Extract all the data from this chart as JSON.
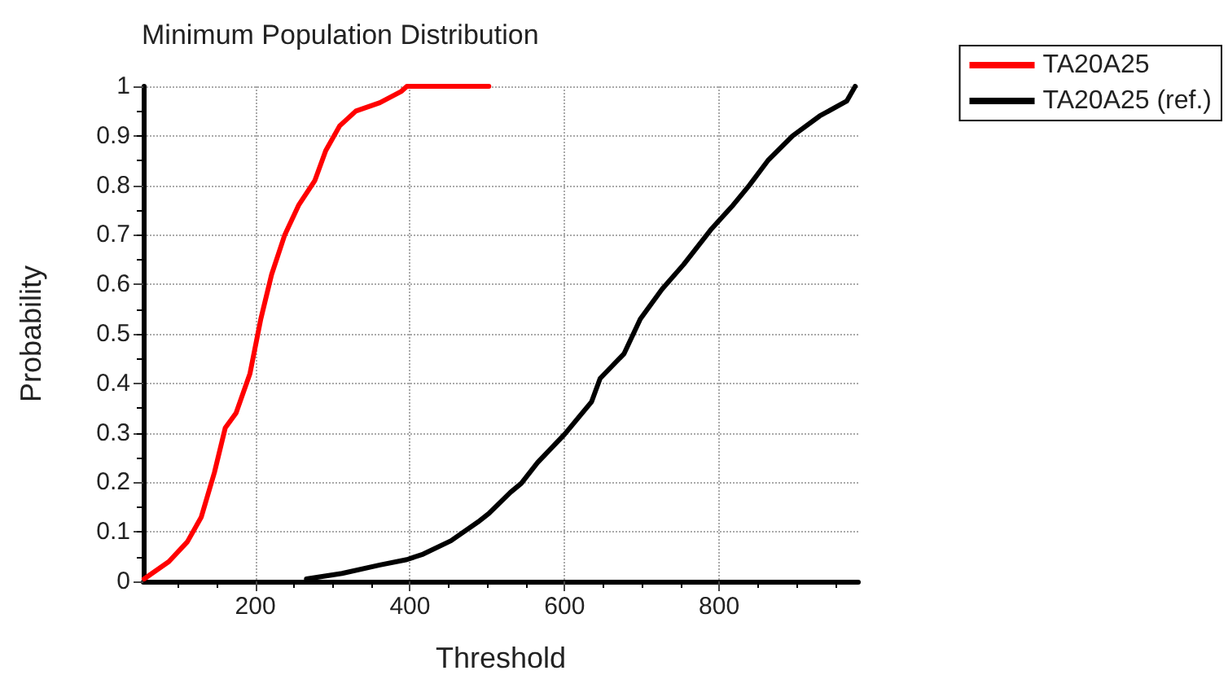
{
  "chart_data": {
    "type": "line",
    "title": "Minimum Population Distribution",
    "xlabel": "Threshold",
    "ylabel": "Probability",
    "xlim": [
      55,
      980
    ],
    "xticks": [
      200,
      400,
      600,
      800
    ],
    "ylim": [
      0,
      1
    ],
    "yticks": [
      0,
      0.1,
      0.2,
      0.3,
      0.4,
      0.5,
      0.6,
      0.7,
      0.8,
      0.9,
      1
    ],
    "grid": true,
    "legend": "top right",
    "marker": "none",
    "line_style": "solid",
    "series": [
      {
        "name": "TA20A25",
        "color": "#ff0000",
        "x": [
          56,
          88,
          112,
          130,
          147,
          161,
          175,
          193,
          207,
          221,
          238,
          256,
          277,
          291,
          309,
          330,
          361,
          389,
          396,
          502
        ],
        "values": [
          0.005,
          0.04,
          0.08,
          0.13,
          0.22,
          0.31,
          0.34,
          0.42,
          0.53,
          0.62,
          0.7,
          0.76,
          0.81,
          0.87,
          0.92,
          0.95,
          0.967,
          0.99,
          1,
          1
        ]
      },
      {
        "name": "TA20A25 (ref.)",
        "color": "#000000",
        "x": [
          266,
          312,
          361,
          396,
          417,
          453,
          488,
          502,
          530,
          544,
          565,
          600,
          635,
          646,
          677,
          698,
          726,
          754,
          789,
          818,
          839,
          863,
          895,
          930,
          965,
          976
        ],
        "values": [
          0.005,
          0.016,
          0.033,
          0.044,
          0.055,
          0.082,
          0.12,
          0.137,
          0.18,
          0.198,
          0.24,
          0.297,
          0.363,
          0.41,
          0.46,
          0.53,
          0.59,
          0.64,
          0.71,
          0.76,
          0.8,
          0.85,
          0.9,
          0.94,
          0.97,
          1
        ]
      }
    ]
  }
}
